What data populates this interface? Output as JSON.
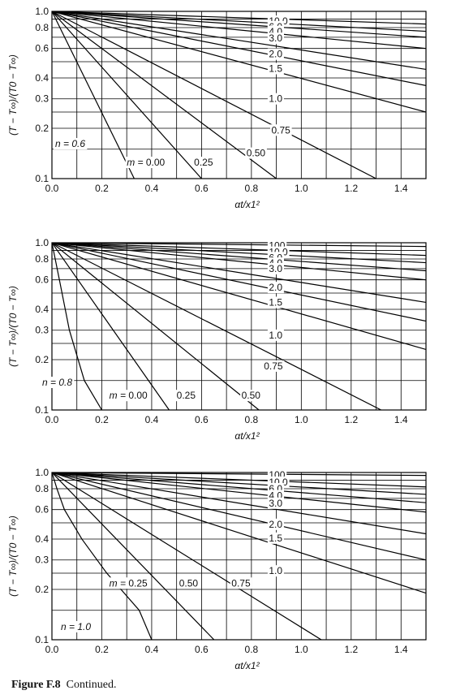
{
  "caption": {
    "figure": "Figure F.8",
    "text": "Continued."
  },
  "chart_data": [
    {
      "type": "line",
      "ylabel": "(T − T∞)/(T0 − T∞)",
      "xlabel": "αt/x1²",
      "xlim": [
        0,
        1.5
      ],
      "ylim": [
        0.1,
        1.0
      ],
      "y_scale": "log",
      "grid": true,
      "x_ticks": [
        "0.0",
        "0.2",
        "0.4",
        "0.6",
        "0.8",
        "1.0",
        "1.2",
        "1.4"
      ],
      "y_ticks": [
        {
          "v": 1.0,
          "label": "1.0"
        },
        {
          "v": 0.8,
          "label": "0.8"
        },
        {
          "v": 0.6,
          "label": "0.6"
        },
        {
          "v": 0.4,
          "label": "0.4"
        },
        {
          "v": 0.3,
          "label": "0.3"
        },
        {
          "v": 0.2,
          "label": "0.2"
        },
        {
          "v": 0.1,
          "label": "0.1"
        }
      ],
      "y_grid": [
        1.0,
        0.9,
        0.8,
        0.7,
        0.6,
        0.5,
        0.4,
        0.3,
        0.25,
        0.2,
        0.15,
        0.1
      ],
      "n_label": "n = 0.6",
      "series": [
        {
          "name": "10.0",
          "values": [
            [
              0,
              1.0
            ],
            [
              1.5,
              0.84
            ]
          ],
          "label_at": [
            0.87,
            0.873
          ]
        },
        {
          "name": "6.0",
          "values": [
            [
              0,
              1.0
            ],
            [
              1.5,
              0.76
            ]
          ],
          "label_at": [
            0.87,
            0.81
          ]
        },
        {
          "name": "4.0",
          "values": [
            [
              0,
              1.0
            ],
            [
              1.5,
              0.7
            ]
          ],
          "label_at": [
            0.87,
            0.758
          ]
        },
        {
          "name": "3.0",
          "values": [
            [
              0,
              1.0
            ],
            [
              1.5,
              0.6
            ]
          ],
          "label_at": [
            0.87,
            0.69
          ]
        },
        {
          "name": "2.0",
          "values": [
            [
              0,
              1.0
            ],
            [
              1.5,
              0.45
            ]
          ],
          "label_at": [
            0.87,
            0.555
          ]
        },
        {
          "name": "1.5",
          "values": [
            [
              0,
              1.0
            ],
            [
              1.5,
              0.36
            ]
          ],
          "label_at": [
            0.87,
            0.455
          ]
        },
        {
          "name": "1.0",
          "values": [
            [
              0,
              1.0
            ],
            [
              1.5,
              0.25
            ]
          ],
          "label_at": [
            0.87,
            0.3
          ]
        },
        {
          "name": "0.75",
          "values": [
            [
              0,
              1.0
            ],
            [
              1.3,
              0.1
            ]
          ],
          "label_at": [
            0.88,
            0.195
          ]
        },
        {
          "name": "0.50",
          "values": [
            [
              0,
              1.0
            ],
            [
              0.9,
              0.1
            ]
          ],
          "label_at": [
            0.78,
            0.142
          ]
        },
        {
          "name": "0.25",
          "values": [
            [
              0,
              1.0
            ],
            [
              0.6,
              0.1
            ]
          ],
          "label_at": [
            0.57,
            0.125
          ]
        },
        {
          "name": "0.00",
          "prefix": "m = ",
          "values": [
            [
              0,
              1.0
            ],
            [
              0.33,
              0.1
            ]
          ],
          "label_at": [
            0.3,
            0.125
          ]
        }
      ]
    },
    {
      "type": "line",
      "ylabel": "(T − T∞)/(T0 − T∞)",
      "xlabel": "αt/x1²",
      "xlim": [
        0,
        1.5
      ],
      "ylim": [
        0.1,
        1.0
      ],
      "y_scale": "log",
      "grid": true,
      "x_ticks": [
        "0.0",
        "0.2",
        "0.4",
        "0.6",
        "0.8",
        "1.0",
        "1.2",
        "1.4"
      ],
      "y_ticks": [
        {
          "v": 1.0,
          "label": "1.0"
        },
        {
          "v": 0.8,
          "label": "0.8"
        },
        {
          "v": 0.6,
          "label": "0.6"
        },
        {
          "v": 0.4,
          "label": "0.4"
        },
        {
          "v": 0.3,
          "label": "0.3"
        },
        {
          "v": 0.2,
          "label": "0.2"
        },
        {
          "v": 0.1,
          "label": "0.1"
        }
      ],
      "y_grid": [
        1.0,
        0.9,
        0.8,
        0.7,
        0.6,
        0.5,
        0.4,
        0.3,
        0.25,
        0.2,
        0.15,
        0.1
      ],
      "n_label": "n = 0.8",
      "series": [
        {
          "name": "100",
          "values": [
            [
              0,
              1.0
            ],
            [
              1.5,
              0.95
            ]
          ],
          "label_at": [
            0.87,
            0.96
          ]
        },
        {
          "name": "10.0",
          "values": [
            [
              0,
              1.0
            ],
            [
              1.5,
              0.84
            ]
          ],
          "label_at": [
            0.87,
            0.878
          ]
        },
        {
          "name": "6.0",
          "values": [
            [
              0,
              1.0
            ],
            [
              1.5,
              0.76
            ]
          ],
          "label_at": [
            0.87,
            0.815
          ]
        },
        {
          "name": "4.0",
          "values": [
            [
              0,
              1.0
            ],
            [
              1.5,
              0.68
            ]
          ],
          "label_at": [
            0.87,
            0.755
          ]
        },
        {
          "name": "3.0",
          "values": [
            [
              0,
              1.0
            ],
            [
              1.5,
              0.6
            ]
          ],
          "label_at": [
            0.87,
            0.7
          ]
        },
        {
          "name": "2.0",
          "values": [
            [
              0,
              1.0
            ],
            [
              1.5,
              0.44
            ]
          ],
          "label_at": [
            0.87,
            0.54
          ]
        },
        {
          "name": "1.5",
          "values": [
            [
              0,
              1.0
            ],
            [
              1.5,
              0.34
            ]
          ],
          "label_at": [
            0.87,
            0.44
          ]
        },
        {
          "name": "1.0",
          "values": [
            [
              0,
              1.0
            ],
            [
              1.5,
              0.23
            ]
          ],
          "label_at": [
            0.87,
            0.28
          ]
        },
        {
          "name": "0.75",
          "values": [
            [
              0,
              1.0
            ],
            [
              1.32,
              0.1
            ]
          ],
          "label_at": [
            0.85,
            0.183
          ]
        },
        {
          "name": "0.50",
          "values": [
            [
              0,
              1.0
            ],
            [
              0.83,
              0.1
            ]
          ],
          "label_at": [
            0.76,
            0.122
          ]
        },
        {
          "name": "0.25",
          "values": [
            [
              0,
              1.0
            ],
            [
              0.47,
              0.1
            ]
          ],
          "label_at": [
            0.5,
            0.122
          ]
        },
        {
          "name": "0.00",
          "prefix": "m = ",
          "values": [
            [
              0,
              1.0
            ],
            [
              0.03,
              0.6
            ],
            [
              0.07,
              0.3
            ],
            [
              0.13,
              0.15
            ],
            [
              0.2,
              0.1
            ]
          ],
          "label_at": [
            0.23,
            0.122
          ]
        }
      ]
    },
    {
      "type": "line",
      "ylabel": "(T − T∞)/(T0 − T∞)",
      "xlabel": "αt/x1²",
      "xlim": [
        0,
        1.5
      ],
      "ylim": [
        0.1,
        1.0
      ],
      "y_scale": "log",
      "grid": true,
      "x_ticks": [
        "0.0",
        "0.2",
        "0.4",
        "0.6",
        "0.8",
        "1.0",
        "1.2",
        "1.4"
      ],
      "y_ticks": [
        {
          "v": 1.0,
          "label": "1.0"
        },
        {
          "v": 0.8,
          "label": "0.8"
        },
        {
          "v": 0.6,
          "label": "0.6"
        },
        {
          "v": 0.4,
          "label": "0.4"
        },
        {
          "v": 0.3,
          "label": "0.3"
        },
        {
          "v": 0.2,
          "label": "0.2"
        },
        {
          "v": 0.1,
          "label": "0.1"
        }
      ],
      "y_grid": [
        1.0,
        0.9,
        0.8,
        0.7,
        0.6,
        0.5,
        0.4,
        0.3,
        0.25,
        0.2,
        0.15,
        0.1
      ],
      "n_label": "n = 1.0",
      "series": [
        {
          "name": "100",
          "values": [
            [
              0,
              1.0
            ],
            [
              1.5,
              0.96
            ]
          ],
          "label_at": [
            0.87,
            0.965
          ]
        },
        {
          "name": "10.0",
          "values": [
            [
              0,
              1.0
            ],
            [
              1.5,
              0.82
            ]
          ],
          "label_at": [
            0.87,
            0.875
          ]
        },
        {
          "name": "6.0",
          "values": [
            [
              0,
              1.0
            ],
            [
              1.5,
              0.74
            ]
          ],
          "label_at": [
            0.87,
            0.8
          ]
        },
        {
          "name": "4.0",
          "values": [
            [
              0,
              1.0
            ],
            [
              1.5,
              0.66
            ]
          ],
          "label_at": [
            0.87,
            0.727
          ]
        },
        {
          "name": "3.0",
          "values": [
            [
              0,
              1.0
            ],
            [
              1.5,
              0.58
            ]
          ],
          "label_at": [
            0.87,
            0.655
          ]
        },
        {
          "name": "2.0",
          "values": [
            [
              0,
              1.0
            ],
            [
              1.5,
              0.43
            ]
          ],
          "label_at": [
            0.87,
            0.49
          ]
        },
        {
          "name": "1.5",
          "values": [
            [
              0,
              1.0
            ],
            [
              1.5,
              0.3
            ]
          ],
          "label_at": [
            0.87,
            0.405
          ]
        },
        {
          "name": "1.0",
          "values": [
            [
              0,
              1.0
            ],
            [
              1.5,
              0.19
            ]
          ],
          "label_at": [
            0.87,
            0.258
          ]
        },
        {
          "name": "0.75",
          "values": [
            [
              0,
              1.0
            ],
            [
              1.08,
              0.1
            ]
          ],
          "label_at": [
            0.72,
            0.218
          ]
        },
        {
          "name": "0.50",
          "values": [
            [
              0,
              1.0
            ],
            [
              0.65,
              0.1
            ]
          ],
          "label_at": [
            0.51,
            0.218
          ]
        },
        {
          "name": "0.25",
          "prefix": "m = ",
          "values": [
            [
              0,
              1.0
            ],
            [
              0.02,
              0.8
            ],
            [
              0.05,
              0.6
            ],
            [
              0.12,
              0.4
            ],
            [
              0.22,
              0.25
            ],
            [
              0.35,
              0.15
            ],
            [
              0.4,
              0.1
            ]
          ],
          "label_at": [
            0.23,
            0.218
          ]
        }
      ]
    }
  ]
}
